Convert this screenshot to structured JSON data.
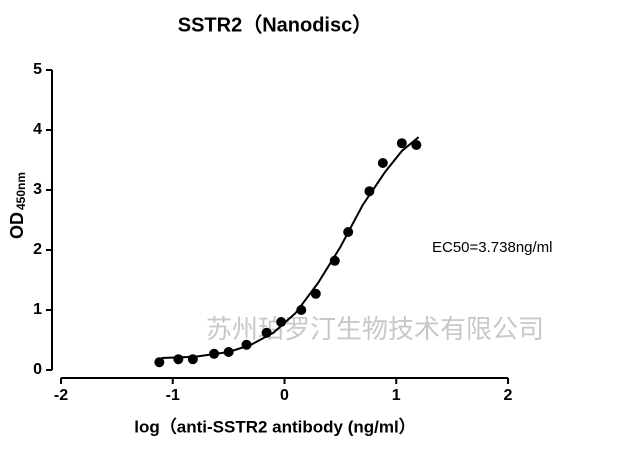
{
  "chart_data": {
    "type": "scatter",
    "title": "SSTR2（Nanodisc）",
    "x_label": "log（anti-SSTR2 antibody (ng/ml）",
    "y_label": "OD",
    "y_label_sub": "450nm",
    "annotations": [
      "EC50=3.738ng/ml",
      "苏州珀罗汀生物技术有限公司"
    ],
    "xlim": [
      -2,
      2
    ],
    "xticks": [
      -2,
      -1,
      0,
      1,
      2
    ],
    "ylim": [
      0,
      5
    ],
    "yticks": [
      0,
      1,
      2,
      3,
      4,
      5
    ],
    "color": "#000000",
    "series": [
      {
        "type": "scatter",
        "x": [
          -1.12,
          -0.95,
          -0.82,
          -0.63,
          -0.5,
          -0.34,
          -0.16,
          -0.03,
          0.15,
          0.28,
          0.45,
          0.57,
          0.76,
          0.88,
          1.05,
          1.18
        ],
        "values": [
          0.13,
          0.18,
          0.18,
          0.27,
          0.3,
          0.42,
          0.62,
          0.8,
          1.0,
          1.27,
          1.82,
          2.3,
          2.98,
          3.45,
          3.78,
          3.75
        ]
      },
      {
        "type": "line",
        "x": [
          -1.1,
          -0.8,
          -0.5,
          -0.3,
          -0.1,
          0.1,
          0.3,
          0.5,
          0.7,
          0.9,
          1.05,
          1.2
        ],
        "values": [
          0.2,
          0.22,
          0.3,
          0.42,
          0.62,
          0.95,
          1.45,
          2.05,
          2.75,
          3.3,
          3.65,
          3.88
        ]
      }
    ]
  }
}
